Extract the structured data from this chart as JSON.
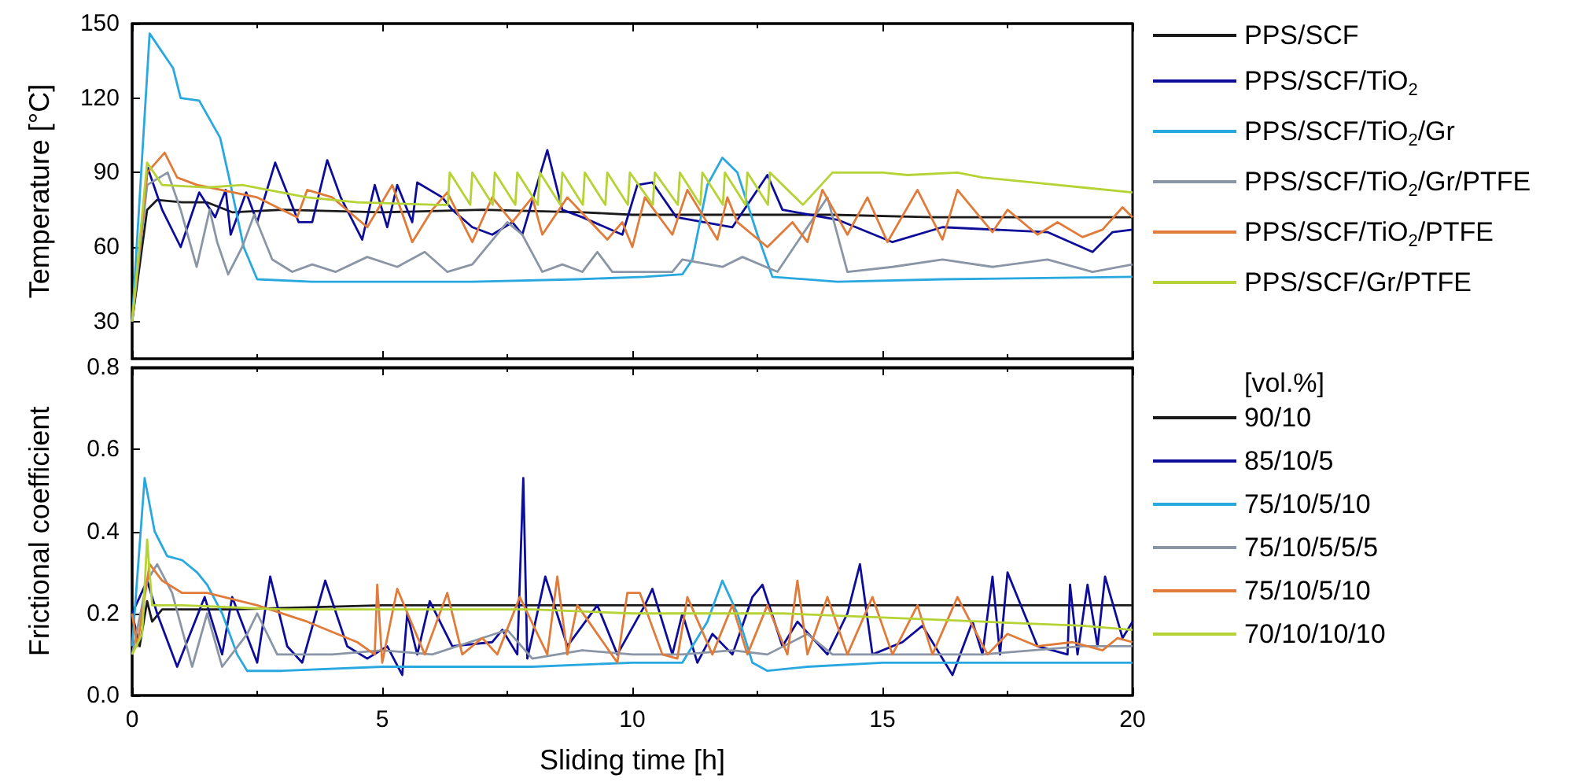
{
  "chart_data": [
    {
      "type": "line",
      "ylabel": "Temperature [°C]",
      "xlim": [
        0,
        20
      ],
      "xticks": [
        0,
        5,
        10,
        15,
        20
      ],
      "ylim": [
        15,
        150
      ],
      "yticks": [
        30,
        60,
        90,
        120,
        150
      ],
      "tick_labels": "y",
      "grid": false,
      "legend": "right",
      "marker": "none",
      "line_style": "solid",
      "series": [
        {
          "name": "PPS/SCF",
          "color": "#1a1a1a",
          "x": [
            0,
            0.3,
            0.5,
            1,
            1.5,
            2,
            3,
            5,
            7,
            9,
            10,
            12,
            14,
            16,
            18,
            20
          ],
          "values": [
            30,
            75,
            79,
            78,
            78,
            74,
            75,
            74,
            75,
            74,
            73,
            73,
            73,
            72,
            72,
            72
          ]
        },
        {
          "name": "PPS/SCF/TiO$_{2}$",
          "color": "#0d0d9a",
          "x": [
            0,
            0.31,
            0.6,
            0.97,
            1.34,
            1.66,
            1.87,
            1.97,
            2.28,
            2.5,
            2.86,
            3.33,
            3.6,
            3.9,
            4.17,
            4.6,
            4.85,
            5.1,
            5.3,
            5.6,
            5.7,
            6.2,
            6.4,
            6.8,
            7.2,
            7.6,
            7.8,
            8.3,
            8.6,
            9.0,
            9.8,
            10.1,
            10.4,
            10.88,
            12.0,
            12.7,
            13.0,
            14.1,
            15.2,
            16.2,
            18.3,
            19.2,
            19.6,
            20
          ],
          "values": [
            30,
            92,
            75,
            60,
            82,
            72,
            83,
            65,
            82,
            70,
            94,
            70,
            70,
            95,
            80,
            63,
            85,
            68,
            85,
            70,
            86,
            80,
            75,
            68,
            65,
            70,
            65,
            99,
            75,
            72,
            65,
            85,
            86,
            72,
            68,
            89,
            75,
            71,
            62,
            68,
            66,
            58,
            66,
            67
          ]
        },
        {
          "name": "PPS/SCF/TiO$_{2}$/Gr",
          "color": "#29a8e0",
          "x": [
            0,
            0.35,
            0.82,
            0.97,
            1.34,
            1.76,
            1.97,
            2.23,
            2.5,
            3.6,
            6.8,
            8.9,
            10.25,
            11.0,
            11.2,
            11.5,
            11.8,
            12.1,
            12.5,
            12.8,
            14.1,
            16.2,
            20
          ],
          "values": [
            30,
            146,
            132,
            120,
            119,
            104,
            85,
            60,
            47,
            46,
            46,
            47,
            48,
            49,
            55,
            85,
            96,
            90,
            65,
            48,
            46,
            47,
            48
          ]
        },
        {
          "name": "PPS/SCF/TiO$_{2}$/Gr/PTFE",
          "color": "#8a96a6",
          "x": [
            0,
            0.3,
            0.71,
            0.97,
            1.29,
            1.55,
            1.7,
            1.92,
            2.2,
            2.44,
            2.8,
            3.2,
            3.6,
            4.07,
            4.7,
            5.3,
            5.85,
            6.3,
            6.8,
            7.5,
            7.8,
            8.2,
            8.6,
            9.0,
            9.3,
            9.6,
            10.25,
            10.8,
            11.0,
            11.8,
            12.2,
            12.9,
            13.9,
            14.3,
            15.2,
            16.2,
            17.2,
            18.3,
            19.2,
            20
          ],
          "values": [
            30,
            85,
            90,
            75,
            52,
            75,
            62,
            49,
            60,
            73,
            55,
            50,
            53,
            50,
            56,
            52,
            58,
            50,
            53,
            70,
            65,
            50,
            53,
            50,
            58,
            50,
            50,
            50,
            55,
            52,
            56,
            50,
            80,
            50,
            52,
            55,
            52,
            55,
            50,
            53
          ]
        },
        {
          "name": "PPS/SCF/TiO$_{2}$/PTFE",
          "color": "#e07b39",
          "x": [
            0,
            0.3,
            0.65,
            0.9,
            1.3,
            2.5,
            3.3,
            3.5,
            4.0,
            4.7,
            5.2,
            5.6,
            6.0,
            6.3,
            6.8,
            7.2,
            7.6,
            8.0,
            8.2,
            8.7,
            9.5,
            9.8,
            10.0,
            10.25,
            10.8,
            11.1,
            11.7,
            11.9,
            12.1,
            12.7,
            13.2,
            13.5,
            13.8,
            14.3,
            14.7,
            15.1,
            15.7,
            16.2,
            16.5,
            17.2,
            17.5,
            18.1,
            18.5,
            19.0,
            19.4,
            19.8,
            20
          ],
          "values": [
            30,
            90,
            98,
            88,
            85,
            80,
            72,
            83,
            80,
            68,
            85,
            62,
            75,
            82,
            62,
            80,
            70,
            80,
            65,
            80,
            63,
            70,
            60,
            80,
            65,
            83,
            63,
            80,
            70,
            60,
            70,
            62,
            83,
            65,
            80,
            62,
            83,
            63,
            83,
            66,
            75,
            65,
            70,
            64,
            67,
            76,
            72
          ]
        },
        {
          "name": "PPS/SCF/Gr/PTFE",
          "color": "#b5d334",
          "x": [
            0,
            0.3,
            0.6,
            1.5,
            2.2,
            3.5,
            4.5,
            6.1,
            6.31,
            6.35,
            6.76,
            6.8,
            7.21,
            7.25,
            7.66,
            7.7,
            8.11,
            8.15,
            8.56,
            8.6,
            9.01,
            9.05,
            9.46,
            9.5,
            9.91,
            9.95,
            10.41,
            10.45,
            10.91,
            10.95,
            11.36,
            11.4,
            11.81,
            11.85,
            12.26,
            12.3,
            12.71,
            12.75,
            13.41,
            14.0,
            15,
            15.5,
            16.5,
            17,
            18,
            19,
            20
          ],
          "values": [
            30,
            94,
            85,
            84,
            85,
            80,
            78,
            77,
            77,
            90,
            77,
            90,
            77,
            90,
            77,
            90,
            77,
            90,
            77,
            90,
            77,
            90,
            77,
            90,
            77,
            90,
            77,
            90,
            77,
            90,
            77,
            90,
            77,
            90,
            77,
            90,
            77,
            90,
            77,
            90,
            90,
            89,
            90,
            88,
            86,
            84,
            82
          ]
        }
      ]
    },
    {
      "type": "line",
      "xlabel": "Sliding time [h]",
      "ylabel": "Frictional coefficient",
      "legend_title": "[vol.%]",
      "xlim": [
        0,
        20
      ],
      "xticks": [
        0,
        5,
        10,
        15,
        20
      ],
      "ylim": [
        0,
        0.8
      ],
      "yticks": [
        {
          "value": 0,
          "label": "0.0"
        },
        0.2,
        0.4,
        0.6,
        0.8
      ],
      "grid": false,
      "legend": "right",
      "marker": "none",
      "line_style": "solid",
      "series": [
        {
          "name": "90/10",
          "color": "#1a1a1a",
          "x": [
            0,
            0.15,
            0.3,
            0.4,
            0.6,
            2,
            5,
            8,
            10,
            15,
            20
          ],
          "values": [
            0.2,
            0.12,
            0.23,
            0.18,
            0.21,
            0.21,
            0.22,
            0.22,
            0.22,
            0.22,
            0.22
          ]
        },
        {
          "name": "85/10/5",
          "color": "#0d0d9a",
          "x": [
            0,
            0.3,
            0.5,
            0.9,
            1.45,
            1.8,
            2.0,
            2.5,
            2.76,
            3.1,
            3.4,
            3.86,
            4.3,
            4.7,
            5.1,
            5.4,
            5.5,
            5.7,
            5.95,
            6.4,
            7.2,
            7.4,
            7.7,
            7.82,
            7.9,
            8.26,
            8.7,
            9.3,
            9.7,
            10.25,
            10.4,
            10.8,
            11.0,
            11.3,
            11.6,
            12.0,
            12.4,
            12.6,
            13.0,
            13.3,
            13.9,
            14.3,
            14.55,
            14.8,
            15.4,
            15.8,
            16.4,
            16.8,
            17.0,
            17.2,
            17.35,
            17.5,
            18.1,
            18.7,
            18.75,
            18.9,
            19.1,
            19.3,
            19.45,
            19.8,
            20
          ],
          "values": [
            0.2,
            0.28,
            0.2,
            0.07,
            0.24,
            0.1,
            0.24,
            0.08,
            0.29,
            0.12,
            0.08,
            0.28,
            0.12,
            0.09,
            0.12,
            0.05,
            0.2,
            0.1,
            0.23,
            0.12,
            0.13,
            0.16,
            0.1,
            0.53,
            0.09,
            0.29,
            0.12,
            0.22,
            0.1,
            0.22,
            0.26,
            0.1,
            0.2,
            0.08,
            0.15,
            0.1,
            0.24,
            0.27,
            0.12,
            0.18,
            0.1,
            0.2,
            0.32,
            0.1,
            0.13,
            0.17,
            0.05,
            0.18,
            0.1,
            0.29,
            0.1,
            0.3,
            0.12,
            0.1,
            0.27,
            0.1,
            0.27,
            0.12,
            0.29,
            0.14,
            0.18
          ]
        },
        {
          "name": "75/10/5/10",
          "color": "#29a8e0",
          "x": [
            0,
            0.25,
            0.45,
            0.7,
            1.0,
            1.3,
            1.5,
            1.8,
            2.1,
            2.3,
            3,
            5,
            8,
            10,
            11,
            11.5,
            11.8,
            12.1,
            12.4,
            12.7,
            13.5,
            15,
            17,
            20
          ],
          "values": [
            0.12,
            0.53,
            0.4,
            0.34,
            0.33,
            0.3,
            0.27,
            0.2,
            0.1,
            0.06,
            0.06,
            0.07,
            0.07,
            0.08,
            0.08,
            0.18,
            0.28,
            0.2,
            0.08,
            0.06,
            0.07,
            0.08,
            0.08,
            0.08
          ]
        },
        {
          "name": "75/10/5/5/5",
          "color": "#8a96a6",
          "x": [
            0,
            0.3,
            0.5,
            0.8,
            1.2,
            1.5,
            1.8,
            2.3,
            2.5,
            2.9,
            4,
            5,
            6,
            7,
            7.5,
            8,
            9,
            10,
            11,
            12,
            12.7,
            13.5,
            14,
            15,
            16,
            17,
            18,
            19,
            20
          ],
          "values": [
            0.1,
            0.28,
            0.32,
            0.25,
            0.07,
            0.2,
            0.07,
            0.15,
            0.2,
            0.1,
            0.1,
            0.11,
            0.1,
            0.14,
            0.16,
            0.09,
            0.11,
            0.1,
            0.1,
            0.11,
            0.1,
            0.15,
            0.1,
            0.1,
            0.1,
            0.1,
            0.11,
            0.12,
            0.12
          ]
        },
        {
          "name": "75/10/5/10",
          "color": "#e07b39",
          "x": [
            0,
            0.1,
            0.35,
            0.6,
            1.0,
            1.5,
            2.5,
            3.5,
            4.5,
            4.85,
            4.9,
            5.0,
            5.3,
            5.85,
            6.3,
            6.6,
            7.0,
            7.3,
            7.75,
            8.3,
            8.5,
            8.7,
            8.9,
            9.7,
            9.9,
            10.15,
            10.6,
            10.9,
            11.1,
            11.6,
            12.0,
            12.3,
            12.7,
            13.1,
            13.3,
            13.5,
            13.9,
            14.3,
            14.8,
            15.2,
            15.7,
            16.0,
            16.5,
            17.1,
            17.5,
            18.1,
            18.8,
            19.4,
            19.7,
            20
          ],
          "values": [
            0.2,
            0.12,
            0.32,
            0.28,
            0.25,
            0.25,
            0.22,
            0.18,
            0.13,
            0.1,
            0.27,
            0.08,
            0.26,
            0.1,
            0.25,
            0.1,
            0.14,
            0.1,
            0.24,
            0.1,
            0.29,
            0.1,
            0.22,
            0.08,
            0.25,
            0.25,
            0.1,
            0.09,
            0.24,
            0.1,
            0.22,
            0.1,
            0.22,
            0.1,
            0.28,
            0.1,
            0.24,
            0.1,
            0.24,
            0.1,
            0.22,
            0.1,
            0.24,
            0.1,
            0.15,
            0.12,
            0.13,
            0.11,
            0.14,
            0.13
          ]
        },
        {
          "name": "70/10/10/10",
          "color": "#b5d334",
          "x": [
            0,
            0.2,
            0.3,
            0.4,
            1,
            3,
            5,
            8,
            10,
            13,
            15,
            17,
            19,
            20
          ],
          "values": [
            0.1,
            0.15,
            0.38,
            0.22,
            0.22,
            0.21,
            0.21,
            0.21,
            0.2,
            0.2,
            0.19,
            0.18,
            0.17,
            0.16
          ]
        }
      ]
    }
  ]
}
